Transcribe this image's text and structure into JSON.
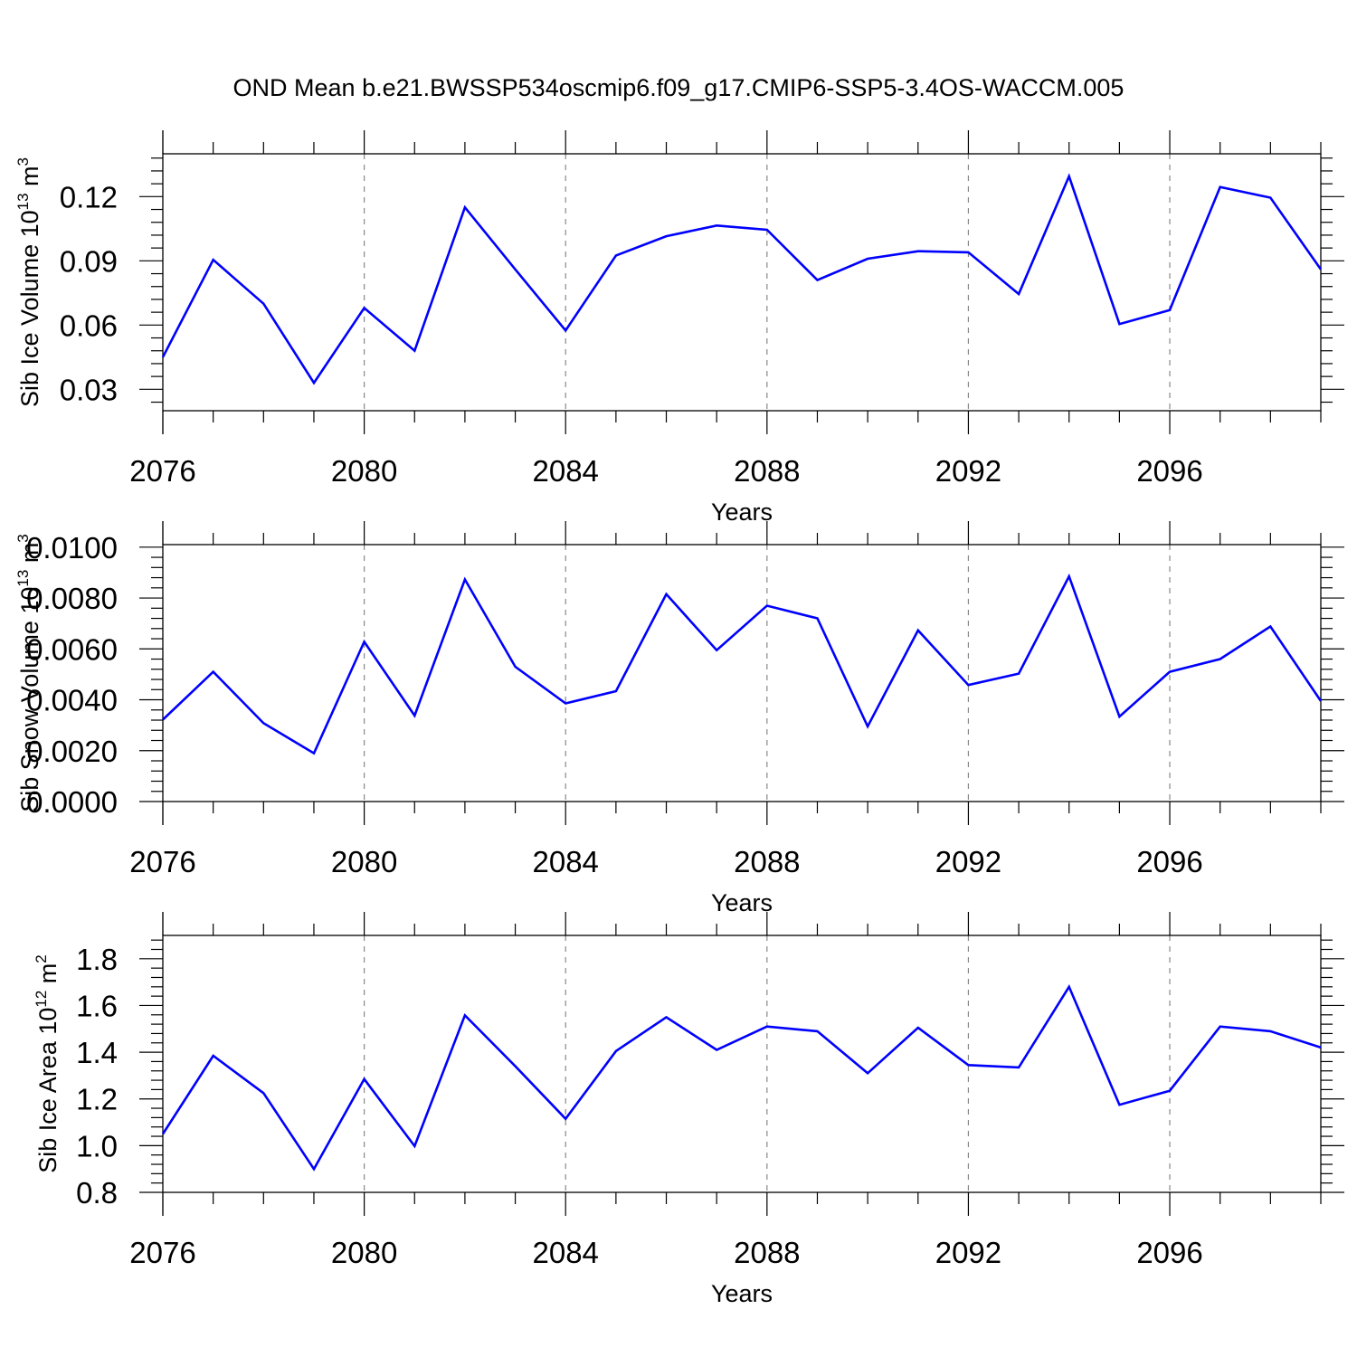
{
  "figure": {
    "title": "OND Mean b.e21.BWSSP534oscmip6.f09_g17.CMIP6-SSP5-3.4OS-WACCM.005"
  },
  "chart_data": [
    {
      "type": "line",
      "ylabel_parts": {
        "base": "Sib Ice Volume 10",
        "exp": "13",
        "unit": " m",
        "unit_exp": "3"
      },
      "xlabel": "Years",
      "xlim": [
        2076,
        2099
      ],
      "ylim": [
        0.02,
        0.14
      ],
      "xticks": [
        2076,
        2080,
        2084,
        2088,
        2092,
        2096
      ],
      "yticks": [
        0.03,
        0.06,
        0.09,
        0.12
      ],
      "ytick_labels": [
        "0.03",
        "0.06",
        "0.09",
        "0.12"
      ],
      "ydecimals": 2,
      "grid": "vertical dashed at major x ticks",
      "line_color": "#0000ff",
      "series": [
        {
          "x": [
            2076,
            2077,
            2078,
            2079,
            2080,
            2081,
            2082,
            2083,
            2084,
            2085,
            2086,
            2087,
            2088,
            2089,
            2090,
            2091,
            2092,
            2093,
            2094,
            2095,
            2096,
            2097,
            2098,
            2099
          ],
          "values": [
            0.045,
            0.0905,
            0.07,
            0.033,
            0.068,
            0.048,
            0.115,
            0.086,
            0.0575,
            0.0925,
            0.1015,
            0.1065,
            0.1045,
            0.081,
            0.091,
            0.0945,
            0.094,
            0.0745,
            0.1295,
            0.0605,
            0.067,
            0.1245,
            0.1195,
            0.086
          ]
        }
      ]
    },
    {
      "type": "line",
      "ylabel_parts": {
        "base": "Sib Snow Volume 10",
        "exp": "13",
        "unit": " m",
        "unit_exp": "3"
      },
      "xlabel": "Years",
      "xlim": [
        2076,
        2099
      ],
      "ylim": [
        0.0,
        0.0101
      ],
      "xticks": [
        2076,
        2080,
        2084,
        2088,
        2092,
        2096
      ],
      "yticks": [
        0.0,
        0.002,
        0.004,
        0.006,
        0.008,
        0.01
      ],
      "ytick_labels": [
        "0.0000",
        "0.0020",
        "0.0040",
        "0.0060",
        "0.0080",
        "0.0100"
      ],
      "ydecimals": 4,
      "grid": "vertical dashed at major x ticks",
      "line_color": "#0000ff",
      "series": [
        {
          "x": [
            2076,
            2077,
            2078,
            2079,
            2080,
            2081,
            2082,
            2083,
            2084,
            2085,
            2086,
            2087,
            2088,
            2089,
            2090,
            2091,
            2092,
            2093,
            2094,
            2095,
            2096,
            2097,
            2098,
            2099
          ],
          "values": [
            0.00322,
            0.0051,
            0.00308,
            0.0019,
            0.00628,
            0.00338,
            0.00873,
            0.0053,
            0.00386,
            0.00434,
            0.00815,
            0.00595,
            0.0077,
            0.0072,
            0.00295,
            0.00673,
            0.00458,
            0.00503,
            0.00885,
            0.00334,
            0.0051,
            0.0056,
            0.00688,
            0.00395
          ]
        }
      ]
    },
    {
      "type": "line",
      "ylabel_parts": {
        "base": "Sib Ice Area 10",
        "exp": "12",
        "unit": " m",
        "unit_exp": "2"
      },
      "xlabel": "Years",
      "xlim": [
        2076,
        2099
      ],
      "ylim": [
        0.8,
        1.9
      ],
      "xticks": [
        2076,
        2080,
        2084,
        2088,
        2092,
        2096
      ],
      "yticks": [
        0.8,
        1.0,
        1.2,
        1.4,
        1.6,
        1.8
      ],
      "ytick_labels": [
        "0.8",
        "1.0",
        "1.2",
        "1.4",
        "1.6",
        "1.8"
      ],
      "ydecimals": 1,
      "grid": "vertical dashed at major x ticks",
      "line_color": "#0000ff",
      "series": [
        {
          "x": [
            2076,
            2077,
            2078,
            2079,
            2080,
            2081,
            2082,
            2083,
            2084,
            2085,
            2086,
            2087,
            2088,
            2089,
            2090,
            2091,
            2092,
            2093,
            2094,
            2095,
            2096,
            2097,
            2098,
            2099
          ],
          "values": [
            1.05,
            1.385,
            1.225,
            0.9,
            1.285,
            0.998,
            1.558,
            1.34,
            1.115,
            1.405,
            1.55,
            1.41,
            1.51,
            1.49,
            1.31,
            1.505,
            1.345,
            1.335,
            1.68,
            1.175,
            1.235,
            1.51,
            1.49,
            1.42
          ]
        }
      ]
    }
  ]
}
